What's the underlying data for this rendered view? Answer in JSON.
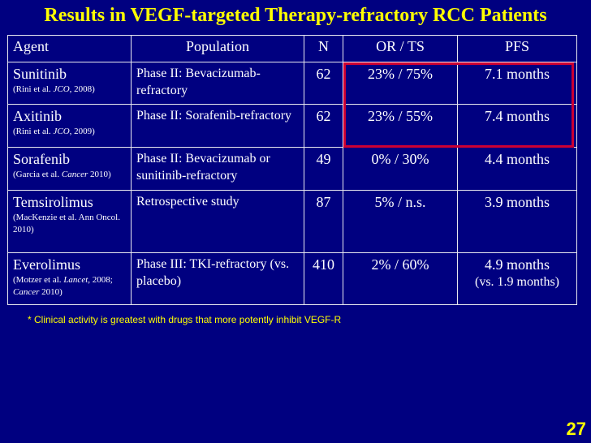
{
  "title": "Results in VEGF-targeted Therapy-refractory RCC Patients",
  "table": {
    "headers": {
      "agent": "Agent",
      "population": "Population",
      "n": "N",
      "or_ts": "OR / TS",
      "pfs": "PFS"
    },
    "rows": [
      {
        "agent": "Sunitinib",
        "ref_pre": "(Rini et al. ",
        "ref_journal": "JCO",
        "ref_post": ", 2008)",
        "population": "Phase II: Bevacizumab-refractory",
        "n": "62",
        "or_ts": "23% / 75%",
        "pfs": "7.1 months",
        "pfs_note": ""
      },
      {
        "agent": "Axitinib",
        "ref_pre": "(Rini et al. ",
        "ref_journal": "JCO",
        "ref_post": ", 2009)",
        "population": "Phase II: Sorafenib-refractory",
        "n": "62",
        "or_ts": "23% / 55%",
        "pfs": "7.4 months",
        "pfs_note": ""
      },
      {
        "agent": "Sorafenib",
        "ref_pre": "(Garcia et al. ",
        "ref_journal": "Cancer",
        "ref_post": " 2010)",
        "population": "Phase II: Bevacizumab or sunitinib-refractory",
        "n": "49",
        "or_ts": "0% / 30%",
        "pfs": "4.4 months",
        "pfs_note": ""
      },
      {
        "agent": "Temsirolimus",
        "ref_pre": "(MacKenzie et al. Ann Oncol. 2010)",
        "ref_journal": "",
        "ref_post": "",
        "population": "Retrospective study",
        "n": "87",
        "or_ts": "5% / n.s.",
        "pfs": "3.9 months",
        "pfs_note": ""
      },
      {
        "agent": "Everolimus",
        "ref_pre": "(Motzer et al. ",
        "ref_journal": "Lancet",
        "ref_post": ", 2008; ",
        "ref_journal2": "Cancer",
        "ref_post2": " 2010)",
        "population": "Phase III: TKI-refractory (vs. placebo)",
        "n": "410",
        "or_ts": "2% / 60%",
        "pfs": "4.9 months",
        "pfs_note": "(vs. 1.9 months)"
      }
    ]
  },
  "footnote": "* Clinical activity is greatest with drugs that more potently inhibit VEGF-R",
  "page_number": "27",
  "colors": {
    "background": "#000080",
    "title": "#FFFF00",
    "text": "#FFFFFF",
    "highlight": "#CC0033"
  }
}
